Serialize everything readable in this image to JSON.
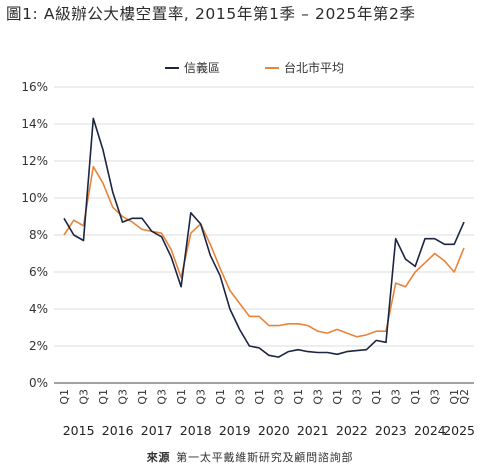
{
  "title": "圖1: A級辦公大樓空置率, 2015年第1季 – 2025年第2季",
  "source": {
    "label": "來源",
    "text": "第一太平戴維斯研究及顧問諮詢部"
  },
  "chart_data": {
    "type": "line",
    "ylim": [
      0,
      16
    ],
    "yticks": [
      "0%",
      "2%",
      "4%",
      "6%",
      "8%",
      "10%",
      "12%",
      "14%",
      "16%"
    ],
    "ytick_values": [
      0,
      2,
      4,
      6,
      8,
      10,
      12,
      14,
      16
    ],
    "grid": true,
    "legend_position": "top-center",
    "quarter_labels": [
      "Q1",
      "Q3"
    ],
    "last_quarter_labels": [
      "Q1",
      "Q2"
    ],
    "years": [
      "2015",
      "2016",
      "2017",
      "2018",
      "2019",
      "2020",
      "2021",
      "2022",
      "2023",
      "2024",
      "2025"
    ],
    "x": [
      "2015Q1",
      "2015Q2",
      "2015Q3",
      "2015Q4",
      "2016Q1",
      "2016Q2",
      "2016Q3",
      "2016Q4",
      "2017Q1",
      "2017Q2",
      "2017Q3",
      "2017Q4",
      "2018Q1",
      "2018Q2",
      "2018Q3",
      "2018Q4",
      "2019Q1",
      "2019Q2",
      "2019Q3",
      "2019Q4",
      "2020Q1",
      "2020Q2",
      "2020Q3",
      "2020Q4",
      "2021Q1",
      "2021Q2",
      "2021Q3",
      "2021Q4",
      "2022Q1",
      "2022Q2",
      "2022Q3",
      "2022Q4",
      "2023Q1",
      "2023Q2",
      "2023Q3",
      "2023Q4",
      "2024Q1",
      "2024Q2",
      "2024Q3",
      "2024Q4",
      "2025Q1",
      "2025Q2"
    ],
    "series": [
      {
        "name": "信義區",
        "color": "#1c2541",
        "values": [
          8.9,
          8.0,
          7.7,
          14.3,
          12.6,
          10.3,
          8.7,
          8.9,
          8.9,
          8.2,
          7.9,
          6.8,
          5.2,
          9.2,
          8.6,
          6.9,
          5.8,
          4.0,
          2.9,
          2.0,
          1.9,
          1.5,
          1.4,
          1.7,
          1.8,
          1.7,
          1.65,
          1.65,
          1.55,
          1.7,
          1.75,
          1.8,
          2.3,
          2.2,
          7.8,
          6.7,
          6.3,
          7.8,
          7.8,
          7.5,
          7.5,
          8.7
        ]
      },
      {
        "name": "台北市平均",
        "color": "#e8843a",
        "values": [
          8.0,
          8.8,
          8.5,
          11.7,
          10.8,
          9.5,
          9.0,
          8.7,
          8.3,
          8.2,
          8.1,
          7.2,
          5.7,
          8.1,
          8.6,
          7.5,
          6.2,
          5.0,
          4.3,
          3.6,
          3.6,
          3.1,
          3.1,
          3.2,
          3.2,
          3.1,
          2.8,
          2.7,
          2.9,
          2.7,
          2.5,
          2.6,
          2.8,
          2.8,
          5.4,
          5.2,
          6.0,
          6.5,
          7.0,
          6.6,
          6.0,
          7.3
        ]
      }
    ]
  }
}
